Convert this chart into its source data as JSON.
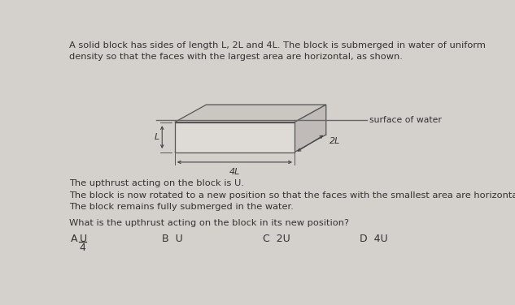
{
  "bg_color": "#d4d0cc",
  "panel_color": "#e8e5e2",
  "text_color": "#333333",
  "title_text": "A solid block has sides of length L, 2L and 4L. The block is submerged in water of uniform\ndensity so that the faces with the largest area are horizontal, as shown.",
  "para1": "The upthrust acting on the block is U.",
  "para2": "The block is now rotated to a new position so that the faces with the smallest area are horizontal.\nThe block remains fully submerged in the water.",
  "para3": "What is the upthrust acting on the block in its new position?",
  "surface_label": "surface of water",
  "label_L": "L",
  "label_2L": "2L",
  "label_4L": "4L",
  "box_front_color": "#dedad6",
  "box_top_color": "#cac6c2",
  "box_right_color": "#c0bbb8",
  "box_edge_color": "#555555",
  "water_line_color": "#666666",
  "dim_arrow_color": "#444444"
}
